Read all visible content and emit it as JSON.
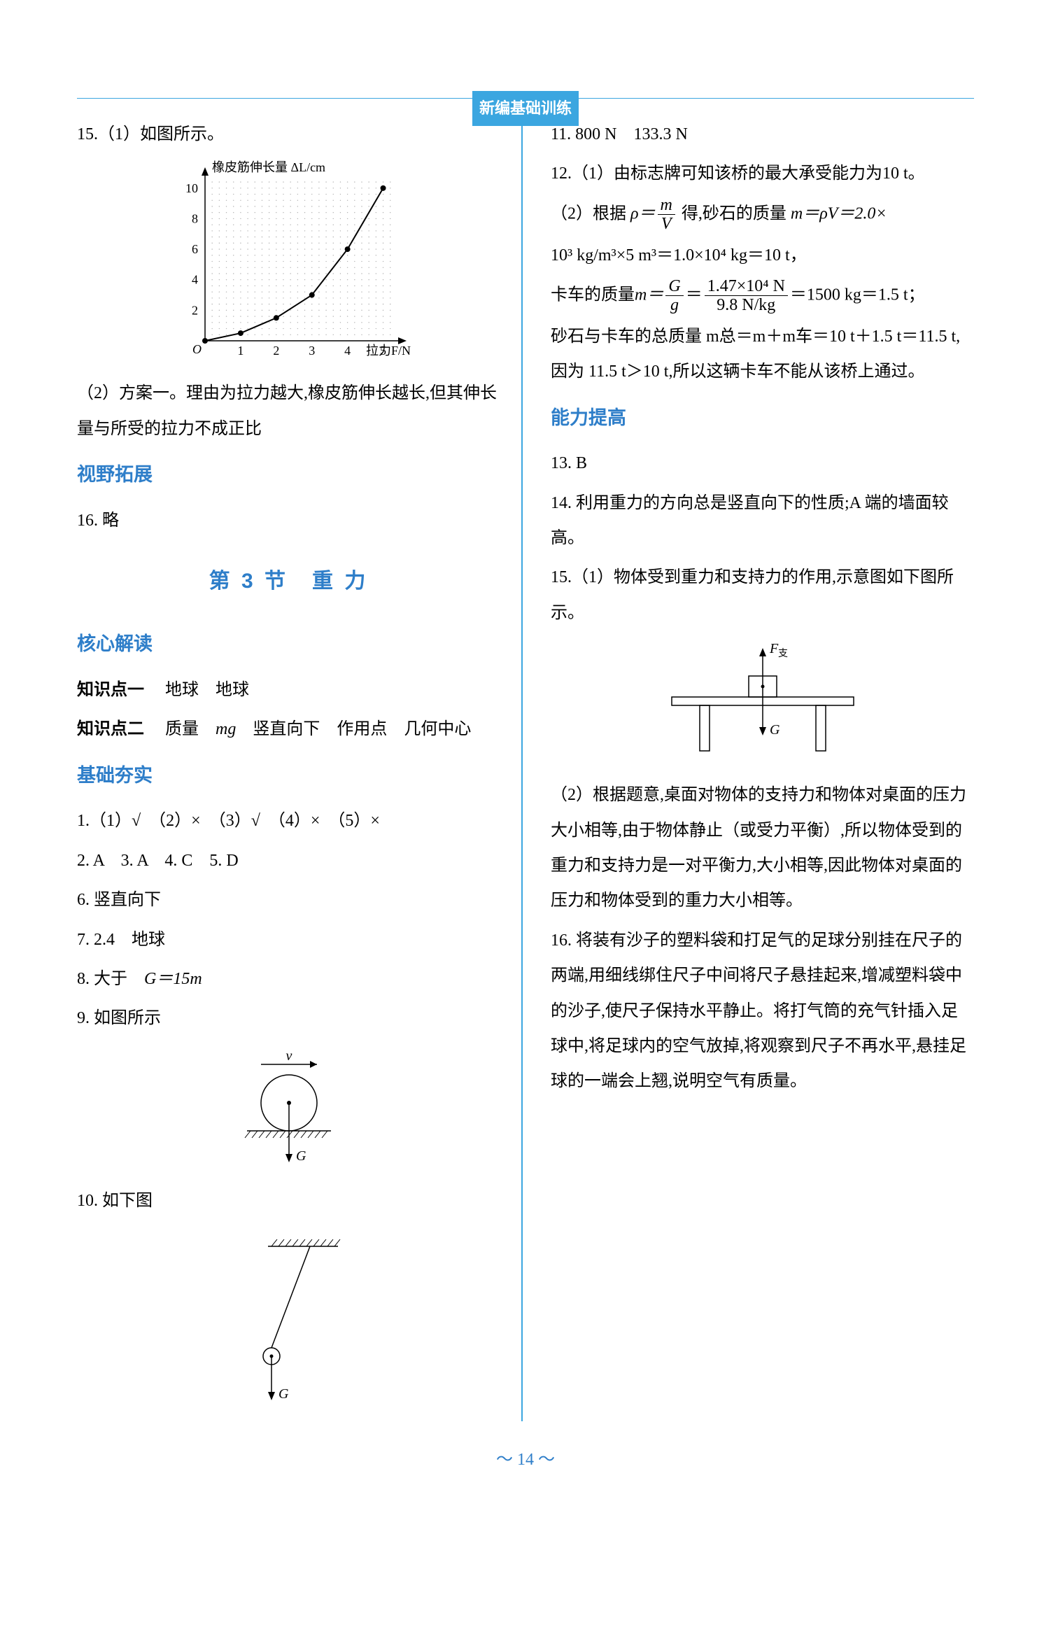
{
  "header": {
    "title": "新编基础训练"
  },
  "left": {
    "q15_1": "15.（1）如图所示。",
    "chart": {
      "type": "line-scatter",
      "x_label": "拉力F/N",
      "y_label": "橡皮筋伸长量 ΔL/cm",
      "xlim": [
        0,
        5.5
      ],
      "ylim": [
        0,
        11
      ],
      "x_ticks": [
        1,
        2,
        3,
        4,
        5
      ],
      "y_ticks": [
        2,
        4,
        6,
        8,
        10
      ],
      "points_x": [
        0,
        1,
        2,
        3,
        4,
        5
      ],
      "points_y": [
        0,
        0.5,
        1.5,
        3,
        6,
        10
      ],
      "marker_color": "#000000",
      "marker_radius": 4,
      "grid_color": "#b0b0b0",
      "axis_color": "#000000",
      "label_fontsize": 18
    },
    "q15_2": "（2）方案一。理由为拉力越大,橡皮筋伸长越长,但其伸长量与所受的拉力不成正比",
    "sec_vision": "视野拓展",
    "q16": "16. 略",
    "chapter": "第 3 节　重 力",
    "sec_core": "核心解读",
    "kp1_label": "知识点一",
    "kp1_text": "地球　地球",
    "kp2_label": "知识点二",
    "kp2_text_a": "质量　",
    "kp2_mg": "mg",
    "kp2_text_b": "　竖直向下　作用点　几何中心",
    "sec_basic": "基础夯实",
    "q1": "1.（1）√　（2）×　（3）√　（4）×　（5）×",
    "q2_5": "2. A　3. A　4. C　5. D",
    "q6": "6. 竖直向下",
    "q7": "7. 2.4　地球",
    "q8_a": "8. 大于　",
    "q8_eq": "G＝15m",
    "q9": "9. 如图所示",
    "fig9": {
      "v_label": "v",
      "g_label": "G",
      "stroke": "#000000"
    },
    "q10": "10. 如下图",
    "fig10": {
      "g_label": "G",
      "stroke": "#000000"
    }
  },
  "right": {
    "q11": "11. 800 N　133.3 N",
    "q12_1": "12.（1）由标志牌可知该桥的最大承受能力为10 t。",
    "q12_2a": "（2）根据 ",
    "q12_2_rho": "ρ＝",
    "q12_2_frac_num": "m",
    "q12_2_frac_den": "V",
    "q12_2b": " 得,砂石的质量 ",
    "q12_2c": "m＝ρV＝2.0×",
    "q12_2d": "10³ kg/m³×5 m³＝1.0×10⁴ kg＝10 t，",
    "q12_2e": "卡车的质量",
    "q12_2_m": "m＝",
    "q12_2_fr2_num": "G",
    "q12_2_fr2_den": "g",
    "q12_2_eq": "＝",
    "q12_2_fr3_num": "1.47×10⁴ N",
    "q12_2_fr3_den": "9.8 N/kg",
    "q12_2f": "＝1500 kg＝1.5 t；",
    "q12_2g": "砂石与卡车的总质量 m总＝m＋m车＝10 t＋1.5 t＝11.5 t,因为 11.5 t＞10 t,所以这辆卡车不能从该桥上通过。",
    "sec_ability": "能力提高",
    "q13": "13. B",
    "q14": "14. 利用重力的方向总是竖直向下的性质;A 端的墙面较高。",
    "q15_1": "15.（1）物体受到重力和支持力的作用,示意图如下图所示。",
    "fig15": {
      "f_label": "F支",
      "g_label": "G",
      "stroke": "#000000"
    },
    "q15_2": "（2）根据题意,桌面对物体的支持力和物体对桌面的压力大小相等,由于物体静止（或受力平衡）,所以物体受到的重力和支持力是一对平衡力,大小相等,因此物体对桌面的压力和物体受到的重力大小相等。",
    "q16": "16. 将装有沙子的塑料袋和打足气的足球分别挂在尺子的两端,用细线绑住尺子中间将尺子悬挂起来,增减塑料袋中的沙子,使尺子保持水平静止。将打气筒的充气针插入足球中,将足球内的空气放掉,将观察到尺子不再水平,悬挂足球的一端会上翘,说明空气有质量。"
  },
  "page_num": "～ 14 ～"
}
